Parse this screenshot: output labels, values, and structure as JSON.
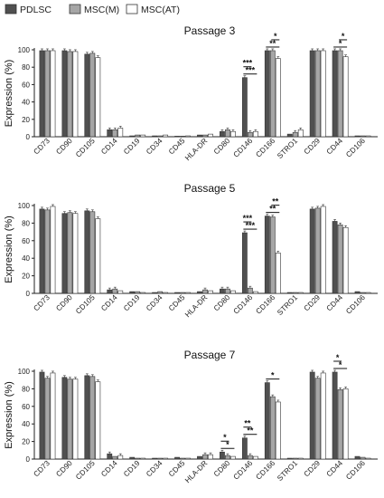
{
  "legend": [
    {
      "name": "PDLSC",
      "color": "#505050"
    },
    {
      "name": "MSC(M)",
      "color": "#a6a6a6"
    },
    {
      "name": "MSC(AT)",
      "color": "#ffffff"
    }
  ],
  "chart_data": [
    {
      "type": "bar",
      "title": "Passage 3",
      "ylabel": "Expression (%)",
      "ylim": [
        0,
        100
      ],
      "yticks": [
        "0",
        "20",
        "40",
        "60",
        "80",
        "100"
      ],
      "categories": [
        "CD73",
        "CD90",
        "CD105",
        "CD14",
        "CD19",
        "CD34",
        "CD45",
        "HLA-DR",
        "CD80",
        "CD146",
        "CD166",
        "STRO1",
        "CD29",
        "CD44",
        "CD106"
      ],
      "series": [
        {
          "name": "PDLSC",
          "values": [
            99,
            99,
            95,
            8,
            1,
            1,
            0.5,
            2,
            6,
            68,
            99,
            3,
            99,
            99,
            1
          ]
        },
        {
          "name": "MSC(M)",
          "values": [
            99,
            98,
            96,
            8,
            2,
            1,
            0.5,
            2,
            8,
            5,
            99,
            5,
            99,
            99,
            1
          ]
        },
        {
          "name": "MSC(AT)",
          "values": [
            99,
            98,
            91,
            10,
            2,
            2,
            1,
            3,
            6,
            6,
            90,
            8,
            99,
            92,
            1
          ]
        }
      ],
      "annotations": [
        {
          "category": "CD146",
          "from": 0,
          "to": 2,
          "label": "***"
        },
        {
          "category": "CD146",
          "from": 0,
          "to": 1,
          "label": "***"
        },
        {
          "category": "CD166",
          "from": 0,
          "to": 2,
          "label": "**"
        },
        {
          "category": "CD166",
          "from": 1,
          "to": 2,
          "label": "*"
        },
        {
          "category": "CD44",
          "from": 0,
          "to": 2,
          "label": "*"
        },
        {
          "category": "CD44",
          "from": 1,
          "to": 2,
          "label": "*"
        }
      ]
    },
    {
      "type": "bar",
      "title": "Passage 5",
      "ylabel": "Expression (%)",
      "ylim": [
        0,
        100
      ],
      "yticks": [
        "0",
        "20",
        "40",
        "60",
        "80",
        "100"
      ],
      "categories": [
        "CD73",
        "CD90",
        "CD105",
        "CD14",
        "CD19",
        "CD34",
        "CD45",
        "HLA-DR",
        "CD80",
        "CD146",
        "CD166",
        "STRO1",
        "CD29",
        "CD44",
        "CD106"
      ],
      "series": [
        {
          "name": "PDLSC",
          "values": [
            96,
            91,
            94,
            4,
            2,
            1,
            1,
            2,
            5,
            69,
            88,
            1,
            96,
            82,
            2
          ]
        },
        {
          "name": "MSC(M)",
          "values": [
            95,
            92,
            93,
            5,
            2,
            2,
            1,
            4,
            5,
            6,
            87,
            1,
            97,
            78,
            1
          ]
        },
        {
          "name": "MSC(AT)",
          "values": [
            99,
            91,
            85,
            3,
            1,
            1,
            1,
            3,
            3,
            2,
            46,
            1,
            99,
            75,
            1
          ]
        }
      ],
      "annotations": [
        {
          "category": "CD146",
          "from": 0,
          "to": 2,
          "label": "***"
        },
        {
          "category": "CD146",
          "from": 0,
          "to": 1,
          "label": "***"
        },
        {
          "category": "CD166",
          "from": 0,
          "to": 2,
          "label": "**"
        },
        {
          "category": "CD166",
          "from": 1,
          "to": 2,
          "label": "**"
        }
      ]
    },
    {
      "type": "bar",
      "title": "Passage 7",
      "ylabel": "Expression (%)",
      "ylim": [
        0,
        100
      ],
      "yticks": [
        "0",
        "20",
        "40",
        "60",
        "80",
        "100"
      ],
      "categories": [
        "CD73",
        "CD90",
        "CD105",
        "CD14",
        "CD19",
        "CD34",
        "CD45",
        "HLA-DR",
        "CD80",
        "CD146",
        "CD166",
        "STRO1",
        "CD29",
        "CD44",
        "CD106"
      ],
      "series": [
        {
          "name": "PDLSC",
          "values": [
            99,
            93,
            95,
            6,
            2,
            1,
            2,
            3,
            8,
            24,
            87,
            1,
            99,
            99,
            3
          ]
        },
        {
          "name": "MSC(M)",
          "values": [
            92,
            91,
            94,
            3,
            1,
            1,
            1,
            5,
            4,
            4,
            71,
            1,
            92,
            79,
            2
          ]
        },
        {
          "name": "MSC(AT)",
          "values": [
            98,
            91,
            88,
            4,
            1,
            1,
            1,
            5,
            3,
            3,
            65,
            1,
            98,
            80,
            1
          ]
        }
      ],
      "annotations": [
        {
          "category": "CD80",
          "from": 0,
          "to": 2,
          "label": "*"
        },
        {
          "category": "CD80",
          "from": 0,
          "to": 1,
          "label": "*"
        },
        {
          "category": "CD146",
          "from": 0,
          "to": 2,
          "label": "**"
        },
        {
          "category": "CD146",
          "from": 0,
          "to": 1,
          "label": "**"
        },
        {
          "category": "CD166",
          "from": 0,
          "to": 2,
          "label": "*"
        },
        {
          "category": "CD44",
          "from": 0,
          "to": 2,
          "label": "*"
        },
        {
          "category": "CD44",
          "from": 0,
          "to": 1,
          "label": "*"
        }
      ]
    }
  ]
}
